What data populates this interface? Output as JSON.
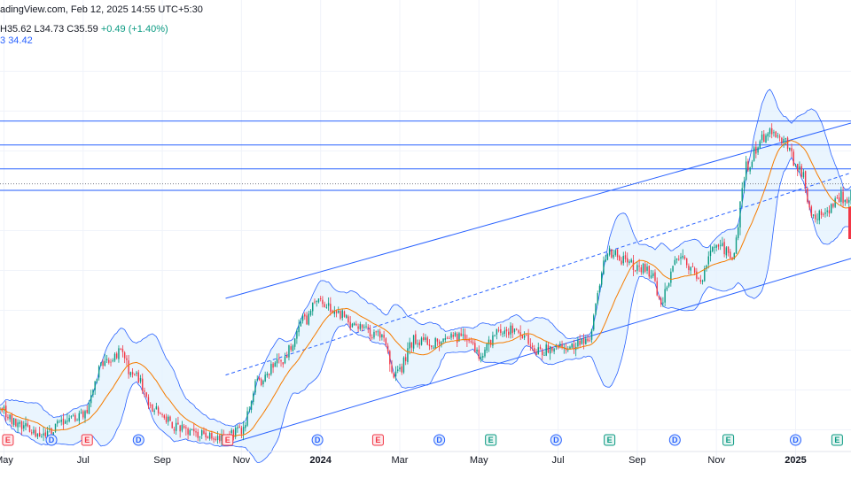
{
  "header": {
    "source": "adingView.com, Feb 12, 2025 14:55 UTC+5:30",
    "ohlc_h": "H35.62",
    "ohlc_l": "L34.73",
    "ohlc_c": "C35.59",
    "change": "+0.49 (+1.40%)",
    "indicator_a": "3",
    "indicator_b": "34.42"
  },
  "colors": {
    "up": "#089981",
    "down": "#f23645",
    "ma": "#f57c00",
    "band": "#2962ff",
    "band_fill": "#e3f2fd",
    "level": "#2962ff",
    "grid": "#f0f3fa"
  },
  "chart_data": {
    "type": "candlestick",
    "x_ticks": [
      {
        "label": "May",
        "month_index": 0
      },
      {
        "label": "Jul",
        "month_index": 2
      },
      {
        "label": "Sep",
        "month_index": 4
      },
      {
        "label": "Nov",
        "month_index": 6
      },
      {
        "label": "2024",
        "month_index": 8,
        "bold": true
      },
      {
        "label": "Mar",
        "month_index": 10
      },
      {
        "label": "May",
        "month_index": 12
      },
      {
        "label": "Jul",
        "month_index": 14
      },
      {
        "label": "Sep",
        "month_index": 16
      },
      {
        "label": "Nov",
        "month_index": 18
      },
      {
        "label": "2025",
        "month_index": 20,
        "bold": true
      }
    ],
    "x_range": [
      -0.1,
      21.4
    ],
    "y_range": [
      8.0,
      48.0
    ],
    "levels": [
      41.0,
      38.6,
      36.2,
      34.05
    ],
    "dotted_level": 34.7,
    "channel": {
      "upper": [
        [
          5.6,
          23.2
        ],
        [
          21.4,
          40.8
        ]
      ],
      "middle": [
        [
          5.6,
          15.5
        ],
        [
          21.4,
          35.8
        ]
      ],
      "lower": [
        [
          5.6,
          8.5
        ],
        [
          21.4,
          27.2
        ]
      ]
    },
    "anchors": [
      [
        -0.1,
        12.0
      ],
      [
        0.45,
        10.3
      ],
      [
        1.0,
        9.5
      ],
      [
        1.6,
        11.0
      ],
      [
        2.0,
        11.5
      ],
      [
        2.5,
        16.5
      ],
      [
        2.9,
        17.7
      ],
      [
        3.3,
        15.4
      ],
      [
        3.8,
        12.0
      ],
      [
        4.4,
        10.2
      ],
      [
        5.0,
        9.6
      ],
      [
        5.55,
        9.2
      ],
      [
        6.0,
        10.0
      ],
      [
        6.4,
        14.6
      ],
      [
        7.0,
        17.0
      ],
      [
        7.6,
        21.0
      ],
      [
        7.9,
        22.8
      ],
      [
        8.3,
        22.0
      ],
      [
        8.9,
        20.5
      ],
      [
        9.5,
        19.3
      ],
      [
        9.9,
        15.6
      ],
      [
        10.4,
        19.0
      ],
      [
        11.0,
        18.8
      ],
      [
        11.6,
        19.4
      ],
      [
        12.0,
        17.6
      ],
      [
        12.6,
        20.2
      ],
      [
        13.0,
        19.6
      ],
      [
        13.5,
        17.8
      ],
      [
        14.0,
        18.4
      ],
      [
        14.7,
        18.6
      ],
      [
        15.3,
        28.0
      ],
      [
        15.9,
        26.4
      ],
      [
        16.3,
        26.0
      ],
      [
        16.6,
        23.2
      ],
      [
        17.0,
        27.4
      ],
      [
        17.6,
        25.5
      ],
      [
        18.0,
        28.6
      ],
      [
        18.4,
        27.7
      ],
      [
        18.8,
        36.8
      ],
      [
        19.2,
        39.6
      ],
      [
        19.7,
        39.1
      ],
      [
        20.1,
        36.3
      ],
      [
        20.4,
        31.8
      ],
      [
        20.7,
        31.2
      ],
      [
        21.0,
        33.1
      ],
      [
        21.4,
        33.6
      ]
    ],
    "events": [
      {
        "letter": "E",
        "month_index": 0.1,
        "kind": "earnings"
      },
      {
        "letter": "D",
        "month_index": 1.2,
        "kind": "dividend"
      },
      {
        "letter": "E",
        "month_index": 2.1,
        "kind": "earnings"
      },
      {
        "letter": "D",
        "month_index": 3.4,
        "kind": "dividend"
      },
      {
        "letter": "E",
        "month_index": 5.65,
        "kind": "earnings"
      },
      {
        "letter": "D",
        "month_index": 7.92,
        "kind": "dividend"
      },
      {
        "letter": "E",
        "month_index": 9.45,
        "kind": "earnings"
      },
      {
        "letter": "D",
        "month_index": 11.0,
        "kind": "dividend"
      },
      {
        "letter": "E",
        "month_index": 12.3,
        "kind": "earnings-future"
      },
      {
        "letter": "D",
        "month_index": 13.95,
        "kind": "dividend"
      },
      {
        "letter": "E",
        "month_index": 15.3,
        "kind": "earnings-future"
      },
      {
        "letter": "D",
        "month_index": 16.95,
        "kind": "dividend"
      },
      {
        "letter": "E",
        "month_index": 18.3,
        "kind": "earnings-future"
      },
      {
        "letter": "D",
        "month_index": 20.0,
        "kind": "dividend"
      },
      {
        "letter": "E",
        "month_index": 21.05,
        "kind": "earnings-future"
      }
    ]
  }
}
